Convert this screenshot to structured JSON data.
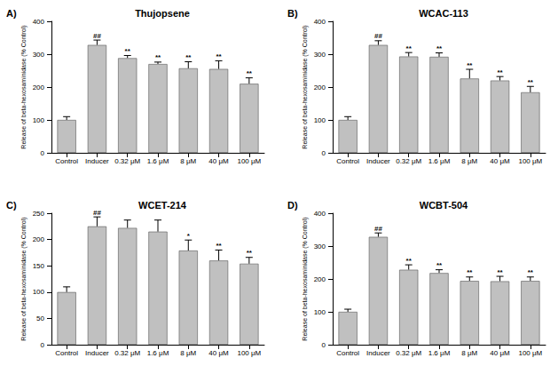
{
  "chart_data": [
    {
      "type": "bar",
      "panel_label": "A)",
      "title": "Thujopsene",
      "y_label": "Release of beta-hexosaminidase (% Control)",
      "categories": [
        "Control",
        "Inducer",
        "0.32 μM",
        "1.6 μM",
        "8 μM",
        "40 μM",
        "100 μM"
      ],
      "values": [
        100,
        328,
        288,
        270,
        257,
        255,
        210
      ],
      "errors": [
        10,
        15,
        8,
        6,
        20,
        25,
        18
      ],
      "annotations": [
        null,
        "##",
        "**",
        "**",
        "**",
        "**",
        "**"
      ],
      "color": "#c0c0c0",
      "ylim": [
        0,
        400
      ],
      "yticks": [
        0,
        100,
        200,
        300,
        400
      ],
      "grid": false
    },
    {
      "type": "bar",
      "panel_label": "B)",
      "title": "WCAC-113",
      "y_label": "Release of beta-hexosaminidase (% Control)",
      "categories": [
        "Control",
        "Inducer",
        "0.32 μM",
        "1.6 μM",
        "8 μM",
        "40 μM",
        "100 μM"
      ],
      "values": [
        100,
        328,
        293,
        292,
        226,
        220,
        184
      ],
      "errors": [
        10,
        13,
        12,
        12,
        28,
        12,
        18
      ],
      "annotations": [
        null,
        "##",
        "**",
        "**",
        "**",
        "**",
        "**"
      ],
      "color": "#c0c0c0",
      "ylim": [
        0,
        400
      ],
      "yticks": [
        0,
        100,
        200,
        300,
        400
      ],
      "grid": false
    },
    {
      "type": "bar",
      "panel_label": "C)",
      "title": "WCET-214",
      "y_label": "Release of beta-hexosaminidase (% Control)",
      "categories": [
        "Control",
        "Inducer",
        "0.32 μM",
        "1.6 μM",
        "8 μM",
        "40 μM",
        "100 μM"
      ],
      "values": [
        100,
        225,
        222,
        215,
        179,
        160,
        154
      ],
      "errors": [
        10,
        18,
        15,
        22,
        20,
        20,
        12
      ],
      "annotations": [
        null,
        "##",
        null,
        null,
        "*",
        "**",
        "**"
      ],
      "color": "#c0c0c0",
      "ylim": [
        0,
        250
      ],
      "yticks": [
        0,
        50,
        100,
        150,
        200,
        250
      ],
      "grid": false
    },
    {
      "type": "bar",
      "panel_label": "D)",
      "title": "WCBT-504",
      "y_label": "Release of beta-hexosaminidase (% Control)",
      "categories": [
        "Control",
        "Inducer",
        "0.32 μM",
        "1.6 μM",
        "8 μM",
        "40 μM",
        "100 μM"
      ],
      "values": [
        100,
        328,
        228,
        218,
        194,
        193,
        194
      ],
      "errors": [
        8,
        12,
        15,
        10,
        12,
        15,
        12
      ],
      "annotations": [
        null,
        "##",
        "**",
        "**",
        "**",
        "**",
        "**"
      ],
      "color": "#c0c0c0",
      "ylim": [
        0,
        400
      ],
      "yticks": [
        0,
        100,
        200,
        300,
        400
      ],
      "grid": false
    }
  ]
}
